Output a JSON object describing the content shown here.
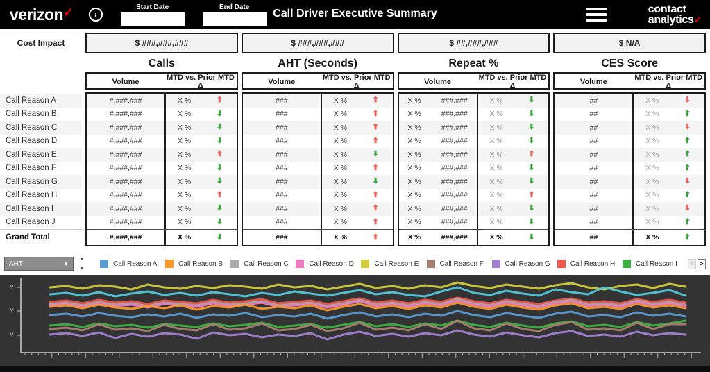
{
  "header": {
    "brand": "verizon",
    "brand_check": "✓",
    "info_icon": "i",
    "start_date_label": "Start Date",
    "start_date_value": "",
    "end_date_label": "End Date",
    "end_date_value": "",
    "title": "Call Driver Executive Summary",
    "logo_line1": "contact",
    "logo_line2": "analytics",
    "logo_check": "✓"
  },
  "cost_impact": {
    "label": "Cost Impact",
    "values": [
      "$ ###,###,###",
      "$ ###,###,###",
      "$ ##,###,###",
      "$ N/A"
    ]
  },
  "sections": [
    {
      "title": "Calls",
      "volume_header": "Volume",
      "mtd_header": "MTD vs. Prior MTD Δ",
      "mtd_muted": false
    },
    {
      "title": "AHT (Seconds)",
      "volume_header": "Volume",
      "mtd_header": "MTD vs. Prior MTD Δ",
      "mtd_muted": false
    },
    {
      "title": "Repeat %",
      "volume_header": "Volume",
      "mtd_header": "MTD vs. Prior MTD Δ",
      "mtd_muted": true
    },
    {
      "title": "CES Score",
      "volume_header": "Volume",
      "mtd_header": "MTD vs. Prior MTD Δ",
      "mtd_muted": true
    }
  ],
  "table": {
    "rows": [
      {
        "label": "Call Reason A",
        "bold": false,
        "cells": [
          {
            "volume": "#,###,###",
            "mtd": "X %",
            "arrow": "up-red"
          },
          {
            "volume": "###",
            "mtd": "X %",
            "arrow": "up-red"
          },
          {
            "volume_pct": "X %",
            "volume": "###,###",
            "mtd": "X %",
            "arrow": "down-green"
          },
          {
            "volume": "##",
            "mtd": "X %",
            "arrow": "down-red"
          }
        ]
      },
      {
        "label": "Call Reason B",
        "bold": false,
        "cells": [
          {
            "volume": "#,###,###",
            "mtd": "X %",
            "arrow": "down-green"
          },
          {
            "volume": "###",
            "mtd": "X %",
            "arrow": "up-red"
          },
          {
            "volume_pct": "X %",
            "volume": "###,###",
            "mtd": "X %",
            "arrow": "down-green"
          },
          {
            "volume": "##",
            "mtd": "X %",
            "arrow": "up-green"
          }
        ]
      },
      {
        "label": "Call Reason C",
        "bold": false,
        "cells": [
          {
            "volume": "#,###,###",
            "mtd": "X %",
            "arrow": "down-green"
          },
          {
            "volume": "###",
            "mtd": "X %",
            "arrow": "up-red"
          },
          {
            "volume_pct": "X %",
            "volume": "###,###",
            "mtd": "X %",
            "arrow": "down-green"
          },
          {
            "volume": "##",
            "mtd": "X %",
            "arrow": "down-red"
          }
        ]
      },
      {
        "label": "Call Reason D",
        "bold": false,
        "cells": [
          {
            "volume": "#,###,###",
            "mtd": "X %",
            "arrow": "down-green"
          },
          {
            "volume": "###",
            "mtd": "X %",
            "arrow": "up-red"
          },
          {
            "volume_pct": "X %",
            "volume": "###,###",
            "mtd": "X %",
            "arrow": "down-green"
          },
          {
            "volume": "##",
            "mtd": "X %",
            "arrow": "up-green"
          }
        ]
      },
      {
        "label": "Call Reason E",
        "bold": false,
        "cells": [
          {
            "volume": "#,###,###",
            "mtd": "X %",
            "arrow": "up-red"
          },
          {
            "volume": "###",
            "mtd": "X %",
            "arrow": "down-green"
          },
          {
            "volume_pct": "X %",
            "volume": "###,###",
            "mtd": "X %",
            "arrow": "up-red"
          },
          {
            "volume": "##",
            "mtd": "X %",
            "arrow": "up-green"
          }
        ]
      },
      {
        "label": "Call Reason F",
        "bold": false,
        "cells": [
          {
            "volume": "#,###,###",
            "mtd": "X %",
            "arrow": "down-green"
          },
          {
            "volume": "###",
            "mtd": "X %",
            "arrow": "up-red"
          },
          {
            "volume_pct": "X %",
            "volume": "###,###",
            "mtd": "X %",
            "arrow": "down-green"
          },
          {
            "volume": "##",
            "mtd": "X %",
            "arrow": "up-green"
          }
        ]
      },
      {
        "label": "Call Reason G",
        "bold": false,
        "cells": [
          {
            "volume": "#,###,###",
            "mtd": "X %",
            "arrow": "down-green"
          },
          {
            "volume": "###",
            "mtd": "X %",
            "arrow": "down-green"
          },
          {
            "volume_pct": "X %",
            "volume": "###,###",
            "mtd": "X %",
            "arrow": "down-green"
          },
          {
            "volume": "##",
            "mtd": "X %",
            "arrow": "down-red"
          }
        ]
      },
      {
        "label": "Call Reason H",
        "bold": false,
        "cells": [
          {
            "volume": "#,###,###",
            "mtd": "X %",
            "arrow": "up-red"
          },
          {
            "volume": "###",
            "mtd": "X %",
            "arrow": "up-red"
          },
          {
            "volume_pct": "X %",
            "volume": "###,###",
            "mtd": "X %",
            "arrow": "up-red"
          },
          {
            "volume": "##",
            "mtd": "X %",
            "arrow": "up-green"
          }
        ]
      },
      {
        "label": "Call Reason I",
        "bold": false,
        "cells": [
          {
            "volume": "#,###,###",
            "mtd": "X %",
            "arrow": "down-green"
          },
          {
            "volume": "###",
            "mtd": "X %",
            "arrow": "up-red"
          },
          {
            "volume_pct": "X %",
            "volume": "###,###",
            "mtd": "X %",
            "arrow": "down-green"
          },
          {
            "volume": "##",
            "mtd": "X %",
            "arrow": "down-red"
          }
        ]
      },
      {
        "label": "Call Reason J",
        "bold": false,
        "cells": [
          {
            "volume": "#,###,###",
            "mtd": "X %",
            "arrow": "down-green"
          },
          {
            "volume": "###",
            "mtd": "X %",
            "arrow": "up-red"
          },
          {
            "volume_pct": "X %",
            "volume": "###,###",
            "mtd": "X %",
            "arrow": "down-green"
          },
          {
            "volume": "##",
            "mtd": "X %",
            "arrow": "up-green"
          }
        ]
      },
      {
        "label": "Grand Total",
        "bold": true,
        "cells": [
          {
            "volume": "#,###,###",
            "mtd": "X %",
            "arrow": "down-green"
          },
          {
            "volume": "###",
            "mtd": "X %",
            "arrow": "up-red"
          },
          {
            "volume_pct": "X %",
            "volume": "###,###",
            "mtd": "X %",
            "arrow": "down-green"
          },
          {
            "volume": "##",
            "mtd": "X %",
            "arrow": "up-green"
          }
        ]
      }
    ]
  },
  "legend": {
    "metric_selector": {
      "value": "AHT"
    },
    "items": [
      {
        "label": "Call Reason A",
        "color": "#5C9BD1"
      },
      {
        "label": "Call Reason B",
        "color": "#F8992D"
      },
      {
        "label": "Call Reason C",
        "color": "#ABABAB"
      },
      {
        "label": "Call Reason D",
        "color": "#F07BC2"
      },
      {
        "label": "Call Reason E",
        "color": "#D3CC3E"
      },
      {
        "label": "Call Reason F",
        "color": "#A77F70"
      },
      {
        "label": "Call Reason G",
        "color": "#A27FD0"
      },
      {
        "label": "Call Reason H",
        "color": "#F1594F"
      },
      {
        "label": "Call Reason I",
        "color": "#3FAF46"
      }
    ],
    "pager": {
      "prev": "<",
      "next": ">"
    }
  },
  "chart_data": {
    "type": "line",
    "title": "",
    "background": "#333333",
    "xlabel": "",
    "ylabel": "",
    "y_axis": {
      "labels": [
        "Y",
        "Y",
        "Y"
      ],
      "positions": [
        18,
        52,
        87
      ]
    },
    "x_axis": {
      "tick_labels_masked": true
    },
    "ylim": [
      0,
      100
    ],
    "series": [
      {
        "name": "Call Reason E",
        "color": "#D3CC3E",
        "values": [
          88,
          90,
          86,
          91,
          89,
          85,
          92,
          88,
          86,
          90,
          87,
          91,
          89,
          86,
          92,
          88,
          90,
          85,
          89,
          93,
          87,
          90,
          86,
          91,
          88,
          95,
          90,
          87,
          92,
          89,
          86,
          91,
          94,
          88,
          85,
          90,
          92,
          87,
          93,
          89
        ]
      },
      {
        "name": "Call Reason J",
        "color": "#52C7DA",
        "values": [
          78,
          80,
          76,
          81,
          75,
          79,
          82,
          77,
          80,
          76,
          81,
          78,
          75,
          80,
          77,
          82,
          79,
          76,
          80,
          84,
          78,
          81,
          77,
          75,
          82,
          88,
          80,
          77,
          83,
          79,
          76,
          85,
          81,
          78,
          88,
          82,
          77,
          80,
          84,
          76
        ]
      },
      {
        "name": "Call Reason H",
        "color": "#F1594F",
        "values": [
          67,
          69,
          65,
          70,
          66,
          68,
          64,
          69,
          67,
          65,
          70,
          66,
          68,
          71,
          65,
          67,
          69,
          64,
          68,
          72,
          66,
          69,
          65,
          70,
          67,
          73,
          68,
          65,
          70,
          67,
          64,
          69,
          72,
          66,
          68,
          65,
          71,
          67,
          70,
          66
        ]
      },
      {
        "name": "Call Reason C",
        "color": "#ABABAB",
        "values": [
          64,
          66,
          62,
          67,
          63,
          65,
          61,
          66,
          64,
          62,
          67,
          63,
          65,
          68,
          62,
          64,
          66,
          61,
          65,
          70,
          63,
          66,
          62,
          67,
          64,
          71,
          65,
          62,
          68,
          64,
          61,
          67,
          70,
          63,
          65,
          62,
          69,
          64,
          67,
          63
        ]
      },
      {
        "name": "Call Reason D",
        "color": "#F07BC2",
        "values": [
          62,
          64,
          60,
          65,
          61,
          63,
          59,
          64,
          62,
          60,
          65,
          61,
          63,
          66,
          60,
          62,
          64,
          59,
          63,
          68,
          61,
          64,
          60,
          65,
          62,
          69,
          63,
          60,
          66,
          62,
          59,
          65,
          68,
          61,
          63,
          60,
          67,
          62,
          65,
          61
        ]
      },
      {
        "name": "Call Reason B",
        "color": "#F8992D",
        "values": [
          60,
          62,
          58,
          63,
          59,
          57,
          61,
          58,
          62,
          56,
          61,
          59,
          63,
          57,
          60,
          58,
          62,
          55,
          60,
          64,
          58,
          61,
          57,
          62,
          59,
          66,
          60,
          57,
          63,
          59,
          56,
          62,
          65,
          58,
          60,
          57,
          64,
          59,
          62,
          58
        ]
      },
      {
        "name": "Call Reason A",
        "color": "#5C9BD1",
        "values": [
          48,
          50,
          46,
          51,
          47,
          45,
          49,
          46,
          50,
          44,
          49,
          47,
          51,
          45,
          48,
          46,
          50,
          43,
          48,
          52,
          46,
          49,
          45,
          50,
          47,
          54,
          48,
          45,
          51,
          47,
          44,
          50,
          53,
          46,
          48,
          45,
          52,
          47,
          50,
          46
        ]
      },
      {
        "name": "Call Reason I",
        "color": "#3FAF46",
        "values": [
          33,
          35,
          31,
          36,
          32,
          34,
          30,
          35,
          33,
          31,
          36,
          32,
          34,
          37,
          31,
          33,
          35,
          30,
          34,
          38,
          32,
          35,
          31,
          36,
          33,
          40,
          34,
          31,
          37,
          33,
          30,
          36,
          39,
          32,
          34,
          31,
          38,
          33,
          36,
          40
        ]
      },
      {
        "name": "Call Reason F",
        "color": "#A77F70",
        "values": [
          28,
          30,
          26,
          35,
          27,
          29,
          25,
          34,
          28,
          26,
          35,
          27,
          29,
          36,
          26,
          28,
          34,
          25,
          29,
          37,
          27,
          30,
          26,
          35,
          28,
          40,
          29,
          26,
          36,
          28,
          25,
          34,
          38,
          27,
          29,
          26,
          37,
          28,
          35,
          35
        ]
      },
      {
        "name": "Call Reason G",
        "color": "#A27FD0",
        "values": [
          20,
          22,
          18,
          23,
          15,
          21,
          17,
          22,
          20,
          14,
          23,
          19,
          21,
          16,
          20,
          18,
          22,
          13,
          20,
          24,
          18,
          21,
          17,
          22,
          19,
          26,
          20,
          17,
          23,
          19,
          16,
          22,
          25,
          18,
          20,
          17,
          24,
          19,
          22,
          20
        ]
      }
    ]
  }
}
